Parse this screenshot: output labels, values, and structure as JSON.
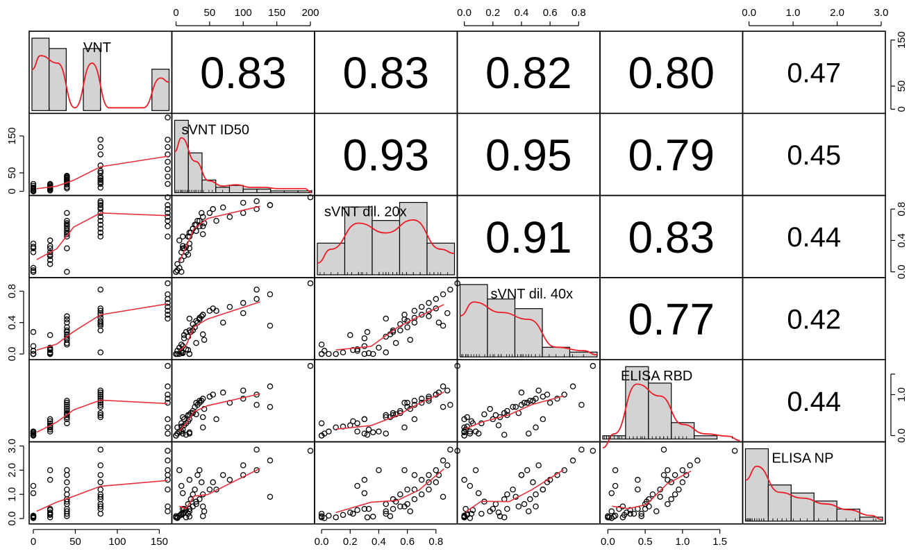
{
  "chart_data": {
    "type": "scatter-matrix",
    "variables": [
      {
        "name": "VNT",
        "range": [
          0,
          160
        ],
        "ticks": [
          0,
          50,
          100,
          150
        ],
        "tick_labels": [
          "0",
          "50",
          "100",
          "150"
        ]
      },
      {
        "name": "sVNT ID50",
        "range": [
          0,
          200
        ],
        "ticks": [
          0,
          50,
          100,
          150,
          200
        ],
        "tick_labels": [
          "0",
          "50",
          "100",
          "150",
          "200"
        ]
      },
      {
        "name": "sVNT dil. 20x",
        "range": [
          -0.02,
          0.92
        ],
        "ticks": [
          0,
          0.2,
          0.4,
          0.6,
          0.8
        ],
        "tick_labels": [
          "0.0",
          "0.2",
          "0.4",
          "0.6",
          "0.8"
        ]
      },
      {
        "name": "sVNT dil. 40x",
        "range": [
          -0.02,
          0.92
        ],
        "ticks": [
          0,
          0.2,
          0.4,
          0.6,
          0.8
        ],
        "tick_labels": [
          "0.0",
          "0.2",
          "0.4",
          "0.6",
          "0.8"
        ]
      },
      {
        "name": "ELISA RBD",
        "range": [
          -0.05,
          1.75
        ],
        "ticks": [
          0,
          0.5,
          1.0,
          1.5
        ],
        "tick_labels": [
          "0.0",
          "0.5",
          "1.0",
          "1.5"
        ]
      },
      {
        "name": "ELISA NP",
        "range": [
          -0.05,
          3.0
        ],
        "ticks": [
          0,
          1,
          2,
          3
        ],
        "tick_labels": [
          "0.0",
          "1.0",
          "2.0",
          "3.0"
        ]
      }
    ],
    "axes_shown": {
      "top": [
        {
          "var": 1,
          "ticks": [
            0,
            50,
            100,
            150,
            200
          ],
          "labels": [
            "0",
            "50",
            "100",
            "150",
            "200"
          ]
        },
        {
          "var": 3,
          "ticks": [
            0,
            0.2,
            0.4,
            0.6,
            0.8
          ],
          "labels": [
            "0.0",
            "0.2",
            "0.4",
            "0.6",
            "0.8"
          ]
        },
        {
          "var": 5,
          "ticks": [
            0,
            1,
            2,
            3
          ],
          "labels": [
            "0.0",
            "1.0",
            "2.0",
            "3.0"
          ]
        }
      ],
      "bottom": [
        {
          "var": 0,
          "ticks": [
            0,
            50,
            100,
            150
          ],
          "labels": [
            "0",
            "50",
            "100",
            "150"
          ]
        },
        {
          "var": 2,
          "ticks": [
            0,
            0.2,
            0.4,
            0.6,
            0.8
          ],
          "labels": [
            "0.0",
            "0.2",
            "0.4",
            "0.6",
            "0.8"
          ]
        },
        {
          "var": 4,
          "ticks": [
            0,
            0.5,
            1.0,
            1.5
          ],
          "labels": [
            "0.0",
            "0.5",
            "1.0",
            "1.5"
          ]
        }
      ],
      "left": [
        {
          "var": 1,
          "ticks": [
            0,
            50,
            150
          ],
          "labels": [
            "0",
            "50",
            "150"
          ]
        },
        {
          "var": 3,
          "ticks": [
            0,
            0.4,
            0.8
          ],
          "labels": [
            "0.0",
            "0.4",
            "0.8"
          ]
        },
        {
          "var": 5,
          "ticks": [
            0,
            1,
            2,
            3
          ],
          "labels": [
            "0.0",
            "1.0",
            "2.0",
            "3.0"
          ]
        }
      ],
      "right": [
        {
          "var": 0,
          "ticks": [
            0,
            50,
            150
          ],
          "labels": [
            "0",
            "50",
            "150"
          ]
        },
        {
          "var": 2,
          "ticks": [
            0,
            0.4,
            0.8
          ],
          "labels": [
            "0.0",
            "0.4",
            "0.8"
          ]
        },
        {
          "var": 4,
          "ticks": [
            0,
            1,
            1.5
          ],
          "labels": [
            "0.0",
            "1.0",
            ""
          ]
        }
      ]
    },
    "correlations": [
      {
        "row": 0,
        "col": 1,
        "value": "0.83",
        "size": "large"
      },
      {
        "row": 0,
        "col": 2,
        "value": "0.83",
        "size": "large"
      },
      {
        "row": 0,
        "col": 3,
        "value": "0.82",
        "size": "large"
      },
      {
        "row": 0,
        "col": 4,
        "value": "0.80",
        "size": "large"
      },
      {
        "row": 0,
        "col": 5,
        "value": "0.47",
        "size": "small"
      },
      {
        "row": 1,
        "col": 2,
        "value": "0.93",
        "size": "large"
      },
      {
        "row": 1,
        "col": 3,
        "value": "0.95",
        "size": "large"
      },
      {
        "row": 1,
        "col": 4,
        "value": "0.79",
        "size": "large"
      },
      {
        "row": 1,
        "col": 5,
        "value": "0.45",
        "size": "small"
      },
      {
        "row": 2,
        "col": 3,
        "value": "0.91",
        "size": "large"
      },
      {
        "row": 2,
        "col": 4,
        "value": "0.83",
        "size": "large"
      },
      {
        "row": 2,
        "col": 5,
        "value": "0.44",
        "size": "small"
      },
      {
        "row": 3,
        "col": 4,
        "value": "0.77",
        "size": "large"
      },
      {
        "row": 3,
        "col": 5,
        "value": "0.42",
        "size": "small"
      },
      {
        "row": 4,
        "col": 5,
        "value": "0.44",
        "size": "small"
      }
    ],
    "histograms": [
      {
        "var": 0,
        "breaks": [
          0,
          20,
          40,
          60,
          80,
          100,
          120,
          140,
          160
        ],
        "counts": [
          14,
          12,
          0,
          12,
          0,
          0,
          0,
          8
        ]
      },
      {
        "var": 1,
        "breaks": [
          0,
          20,
          40,
          60,
          80,
          100,
          120,
          140,
          160,
          180,
          200
        ],
        "counts": [
          40,
          22,
          7,
          3,
          4,
          2,
          2,
          1,
          1,
          1
        ]
      },
      {
        "var": 2,
        "breaks": [
          0,
          0.2,
          0.4,
          0.6,
          0.8,
          1.0
        ],
        "counts": [
          7,
          15,
          12,
          16,
          7
        ]
      },
      {
        "var": 3,
        "breaks": [
          0,
          0.2,
          0.4,
          0.6,
          0.8,
          1.0
        ],
        "counts": [
          15,
          12,
          10,
          2,
          1
        ]
      },
      {
        "var": 4,
        "breaks": [
          0,
          0.3,
          0.6,
          0.9,
          1.2,
          1.5,
          1.8
        ],
        "counts": [
          1,
          22,
          17,
          5,
          1,
          0
        ]
      },
      {
        "var": 5,
        "breaks": [
          0,
          0.5,
          1.0,
          1.5,
          2.0,
          2.5,
          3.0
        ],
        "counts": [
          18,
          9,
          7,
          5,
          3,
          1
        ]
      }
    ],
    "observations": [
      [
        0,
        0,
        0,
        0,
        0,
        0.1
      ],
      [
        0,
        0,
        0,
        0,
        0,
        0.05
      ],
      [
        0,
        2,
        0.02,
        0.04,
        0.05,
        0.02
      ],
      [
        0,
        5,
        0.05,
        0,
        0.1,
        0.12
      ],
      [
        0,
        8,
        0.25,
        0.04,
        0.1,
        1.35
      ],
      [
        0,
        10,
        0.3,
        0.1,
        0.05,
        1.05
      ],
      [
        0,
        15,
        0.32,
        0.28,
        0.02,
        0.05
      ],
      [
        0,
        20,
        0.36,
        0.0,
        0.08,
        0.08
      ],
      [
        20,
        2,
        0.1,
        0.0,
        0.2,
        0.05
      ],
      [
        20,
        8,
        0.15,
        0.02,
        0.22,
        0.15
      ],
      [
        20,
        12,
        0.2,
        0.24,
        0.25,
        0.25
      ],
      [
        20,
        15,
        0.25,
        0.06,
        0.3,
        0.35
      ],
      [
        20,
        20,
        0.3,
        0.0,
        0.4,
        1.6
      ],
      [
        20,
        5,
        0.4,
        0.08,
        0.1,
        2.0
      ],
      [
        20,
        10,
        0.33,
        0.01,
        0.15,
        0.4
      ],
      [
        20,
        18,
        0.22,
        0.05,
        0.35,
        0.2
      ],
      [
        40,
        8,
        0.0,
        0.12,
        0.3,
        0.2
      ],
      [
        40,
        12,
        0.3,
        0.2,
        0.4,
        0.4
      ],
      [
        40,
        18,
        0.45,
        0.22,
        0.5,
        0.6
      ],
      [
        40,
        22,
        0.5,
        0.28,
        0.55,
        0.8
      ],
      [
        40,
        25,
        0.55,
        0.3,
        0.6,
        1.0
      ],
      [
        40,
        28,
        0.6,
        0.34,
        0.7,
        1.2
      ],
      [
        40,
        32,
        0.65,
        0.4,
        0.75,
        1.8
      ],
      [
        40,
        35,
        0.58,
        0.44,
        0.8,
        2.0
      ],
      [
        40,
        38,
        0.75,
        0.48,
        0.85,
        1.5
      ],
      [
        40,
        40,
        0.48,
        0.25,
        0.45,
        0.1
      ],
      [
        40,
        42,
        0.62,
        0.18,
        0.65,
        0.3
      ],
      [
        40,
        30,
        0.52,
        0.14,
        0.52,
        0.7
      ],
      [
        80,
        10,
        0.45,
        0.02,
        0.45,
        0.2
      ],
      [
        80,
        20,
        0.5,
        0.3,
        0.5,
        0.4
      ],
      [
        80,
        25,
        0.55,
        0.38,
        0.55,
        0.5
      ],
      [
        80,
        30,
        0.6,
        0.42,
        0.8,
        0.6
      ],
      [
        80,
        35,
        0.65,
        0.46,
        0.85,
        0.8
      ],
      [
        80,
        40,
        0.7,
        0.5,
        0.9,
        1.0
      ],
      [
        80,
        50,
        0.75,
        0.55,
        0.95,
        1.2
      ],
      [
        80,
        55,
        0.8,
        0.58,
        1.0,
        1.5
      ],
      [
        80,
        70,
        0.82,
        0.4,
        1.05,
        1.8
      ],
      [
        80,
        100,
        0.88,
        0.52,
        1.1,
        2.2
      ],
      [
        80,
        120,
        0.9,
        0.82,
        0.75,
        2.85
      ],
      [
        80,
        140,
        0.85,
        0.36,
        0.7,
        0.9
      ],
      [
        160,
        20,
        0.45,
        0.45,
        0.05,
        0.3
      ],
      [
        160,
        40,
        0.58,
        0.5,
        0.2,
        0.5
      ],
      [
        160,
        60,
        0.65,
        0.55,
        0.4,
        1.2
      ],
      [
        160,
        80,
        0.7,
        0.6,
        0.8,
        1.6
      ],
      [
        160,
        100,
        0.75,
        0.65,
        0.9,
        1.8
      ],
      [
        160,
        120,
        0.8,
        0.7,
        1.0,
        2.0
      ],
      [
        160,
        140,
        0.85,
        0.76,
        1.2,
        2.4
      ],
      [
        160,
        200,
        0.95,
        0.9,
        1.7,
        2.8
      ]
    ]
  }
}
